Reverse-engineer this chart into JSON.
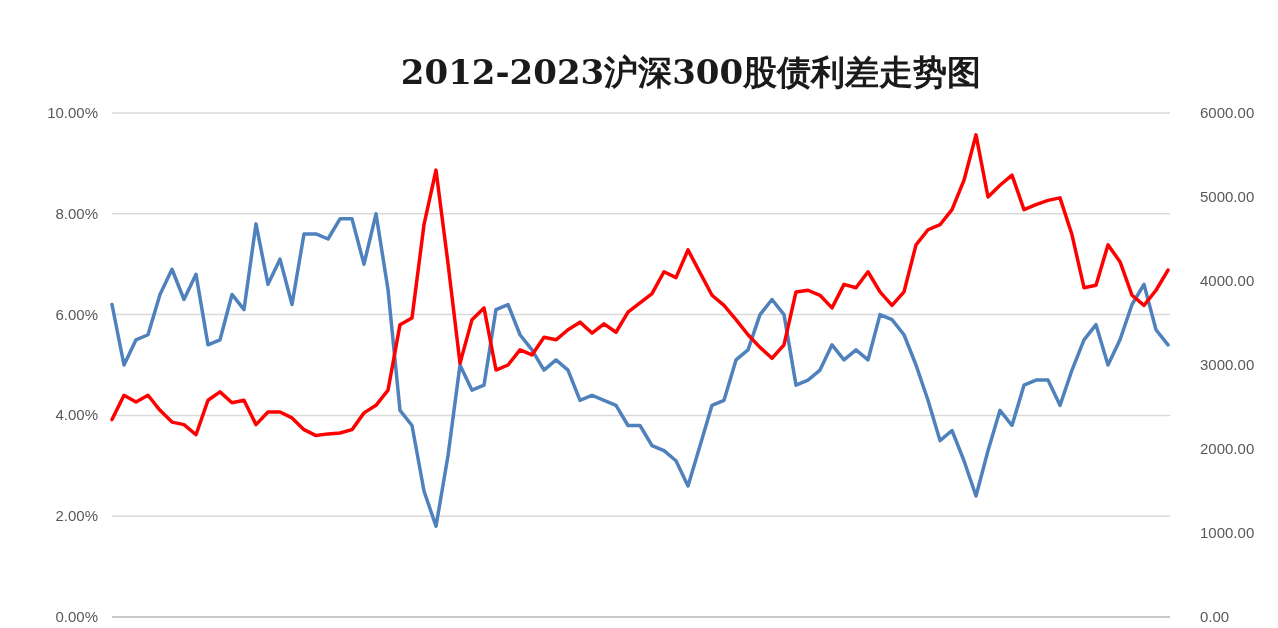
{
  "chart_data": {
    "type": "line",
    "title": "2012-2023沪深300股债利差走势图",
    "categories": [
      null,
      null,
      null,
      null,
      null,
      null,
      null,
      null,
      null,
      null,
      null,
      null,
      null,
      null,
      null,
      null,
      null,
      null,
      null,
      null,
      null,
      null,
      null,
      null,
      null,
      null,
      null,
      null,
      null,
      null,
      null,
      null,
      null,
      null,
      null,
      null,
      null,
      null,
      null,
      null,
      null,
      null,
      null,
      null,
      null,
      null,
      null,
      null,
      null,
      null,
      null,
      null,
      null,
      null,
      null,
      null,
      null,
      null,
      null,
      null,
      null,
      null,
      null,
      null,
      null,
      null,
      null,
      null,
      null,
      null,
      null,
      null,
      null,
      null,
      null,
      null,
      null,
      null,
      null,
      null,
      null,
      null,
      null,
      null,
      null,
      null,
      null,
      null,
      null
    ],
    "series": [
      {
        "color": "#4f81bd",
        "values": [
          6.2,
          5.0,
          5.5,
          5.6,
          6.4,
          6.9,
          6.3,
          6.8,
          5.4,
          5.5,
          6.4,
          6.1,
          7.8,
          6.6,
          7.1,
          6.2,
          7.6,
          7.6,
          7.5,
          7.9,
          7.9,
          7.0,
          8.0,
          6.5,
          4.1,
          3.8,
          2.5,
          1.8,
          3.2,
          5.0,
          4.5,
          4.6,
          6.1,
          6.2,
          5.6,
          5.3,
          4.9,
          5.1,
          4.9,
          4.3,
          4.4,
          4.3,
          4.2,
          3.8,
          3.8,
          3.4,
          3.3,
          3.1,
          2.6,
          3.4,
          4.2,
          4.3,
          5.1,
          5.3,
          6.0,
          6.3,
          6.0,
          4.6,
          4.7,
          4.9,
          5.4,
          5.1,
          5.3,
          5.1,
          6.0,
          5.9,
          5.6,
          5.0,
          4.3,
          3.5,
          3.7,
          3.1,
          2.4,
          3.3,
          4.1,
          3.8,
          4.6,
          4.7,
          4.7,
          4.2,
          4.9,
          5.5,
          5.8,
          5.0,
          5.5,
          6.2,
          6.6,
          5.7,
          5.4
        ]
      },
      {
        "color": "#ff0000",
        "axis": "y2",
        "values": [
          2350,
          2640,
          2560,
          2640,
          2460,
          2320,
          2290,
          2170,
          2580,
          2680,
          2550,
          2580,
          2290,
          2440,
          2440,
          2370,
          2230,
          2160,
          2180,
          2190,
          2230,
          2430,
          2520,
          2700,
          3480,
          3560,
          4670,
          5320,
          4210,
          3020,
          3540,
          3680,
          2940,
          3000,
          3180,
          3120,
          3330,
          3300,
          3420,
          3510,
          3380,
          3490,
          3390,
          3630,
          3740,
          3850,
          4110,
          4040,
          4370,
          4100,
          3830,
          3710,
          3540,
          3360,
          3210,
          3080,
          3240,
          3870,
          3890,
          3830,
          3680,
          3960,
          3920,
          4110,
          3870,
          3710,
          3870,
          4430,
          4610,
          4670,
          4850,
          5200,
          5740,
          5000,
          5140,
          5260,
          4850,
          4910,
          4960,
          4990,
          4550,
          3920,
          3950,
          4430,
          4230,
          3830,
          3710,
          3890,
          4130
        ]
      }
    ],
    "ylim": [
      0,
      10
    ],
    "yticks": [
      {
        "value": 0,
        "label": "0.00%"
      },
      {
        "value": 2,
        "label": "2.00%"
      },
      {
        "value": 4,
        "label": "4.00%"
      },
      {
        "value": 6,
        "label": "6.00%"
      },
      {
        "value": 8,
        "label": "8.00%"
      },
      {
        "value": 10,
        "label": "10.00%"
      }
    ],
    "y2lim": [
      0,
      6000
    ],
    "y2ticks": [
      {
        "value": 0,
        "label": "0.00"
      },
      {
        "value": 1000,
        "label": "1000.00"
      },
      {
        "value": 2000,
        "label": "2000.00"
      },
      {
        "value": 3000,
        "label": "3000.00"
      },
      {
        "value": 4000,
        "label": "4000.00"
      },
      {
        "value": 5000,
        "label": "5000.00"
      },
      {
        "value": 6000,
        "label": "6000.00"
      }
    ],
    "grid": "y",
    "marker": "none",
    "line_style": "solid"
  }
}
